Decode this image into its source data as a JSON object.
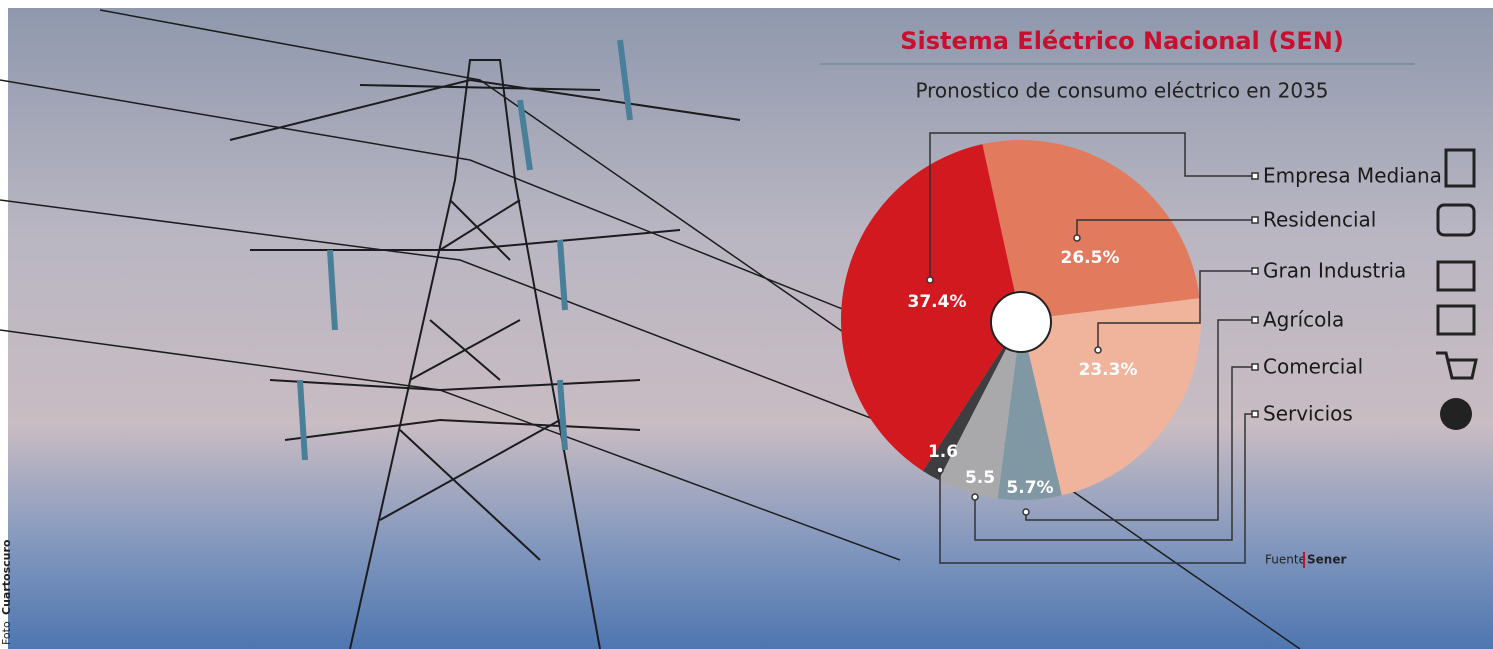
{
  "chart_data": {
    "type": "pie",
    "title": "Sistema Eléctrico Nacional (SEN)",
    "subtitle": "Pronostico de consumo eléctrico en 2035",
    "categories": [
      "Empresa Mediana",
      "Residencial",
      "Gran Industria",
      "Agrícola",
      "Comercial",
      "Servicios"
    ],
    "values": [
      37.4,
      26.5,
      23.3,
      5.7,
      5.5,
      1.6
    ],
    "value_labels": [
      "37.4%",
      "26.5%",
      "23.3%",
      "5.7%",
      "5.5",
      "1.6"
    ],
    "colors": [
      "#d2191f",
      "#e27a5d",
      "#efb49b",
      "#7f98a3",
      "#a9a9ab",
      "#3e3e40"
    ],
    "source_label": "Fuente",
    "source": "Sener",
    "photo_label": "Foto",
    "photo_credit": "Cuartoscuro"
  }
}
